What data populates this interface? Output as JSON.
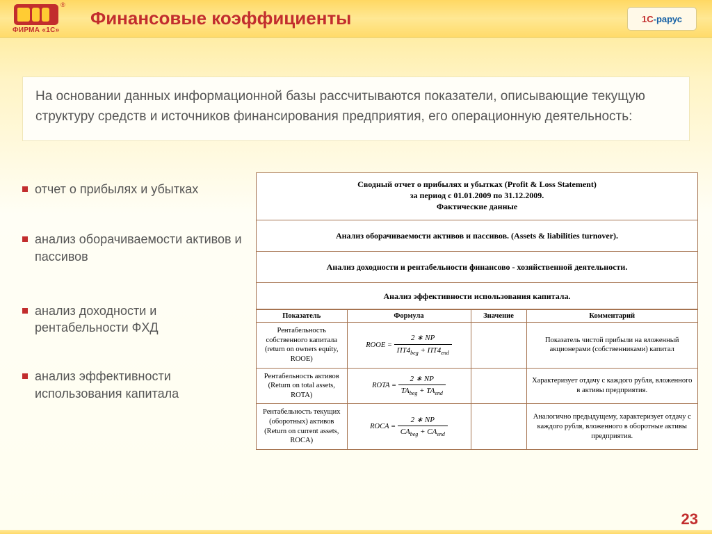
{
  "header": {
    "logo_label": "ФИРМА «1С»",
    "title": "Финансовые коэффициенты",
    "rarus_1": "1С",
    "rarus_2": "-рарус"
  },
  "intro": "На основании данных информационной базы рассчитываются показатели, описывающие текущую структуру средств и источников финансирования предприятия, его операционную деятельность:",
  "bullets": [
    "отчет о прибылях и убытках",
    "анализ оборачиваемости активов и пассивов",
    "анализ доходности и рентабельности ФХД",
    "анализ эффективности использования капитала"
  ],
  "report": {
    "s1_l1": "Сводный отчет о прибылях и убытках (Profit & Loss Statement)",
    "s1_l2": "за период с 01.01.2009 по 31.12.2009.",
    "s1_l3": "Фактические данные",
    "s2": "Анализ оборачиваемости активов и пассивов. (Assets & liabilities turnover).",
    "s3": "Анализ доходности и рентабельности финансово - хозяйственной деятельности.",
    "s4": "Анализ эффективности использования капитала.",
    "columns": [
      "Показатель",
      "Формула",
      "Значение",
      "Комментарий"
    ],
    "rows": [
      {
        "indicator": "Рентабельность собственного капитала\n(return on owners equity, ROOE)",
        "formula_lhs": "ROOE",
        "formula_num": "2 ∗ NP",
        "formula_den_a": "ПТ4",
        "formula_den_a_sub": "beg",
        "formula_den_b": "ПТ4",
        "formula_den_b_sub": "end",
        "value": "",
        "comment": "Показатель чистой прибыли на вложенный акционерами (собственниками) капитал"
      },
      {
        "indicator": "Рентабельность активов\n(Return on total assets, ROTA)",
        "formula_lhs": "ROTA",
        "formula_num": "2 ∗ NP",
        "formula_den_a": "TA",
        "formula_den_a_sub": "beg",
        "formula_den_b": "TA",
        "formula_den_b_sub": "end",
        "value": "",
        "comment": "Характеризует отдачу с каждого рубля, вложенного в активы предприятия."
      },
      {
        "indicator": "Рентабельность текущих (оборотных) активов\n(Return on current assets, ROCA)",
        "formula_lhs": "ROCA",
        "formula_num": "2 ∗ NP",
        "formula_den_a": "CA",
        "formula_den_a_sub": "beg",
        "formula_den_b": "CA",
        "formula_den_b_sub": "end",
        "value": "",
        "comment": "Аналогично предыдущему, характеризует отдачу с каждого рубля, вложенного в оборотные активы предприятия."
      }
    ]
  },
  "page_number": "23",
  "colors": {
    "accent_red": "#c22d2d",
    "border_brown": "#a57350",
    "bg_gradient_top": "#ffe78a",
    "bg_gradient_mid": "#fff4c5",
    "text_gray": "#555555"
  }
}
